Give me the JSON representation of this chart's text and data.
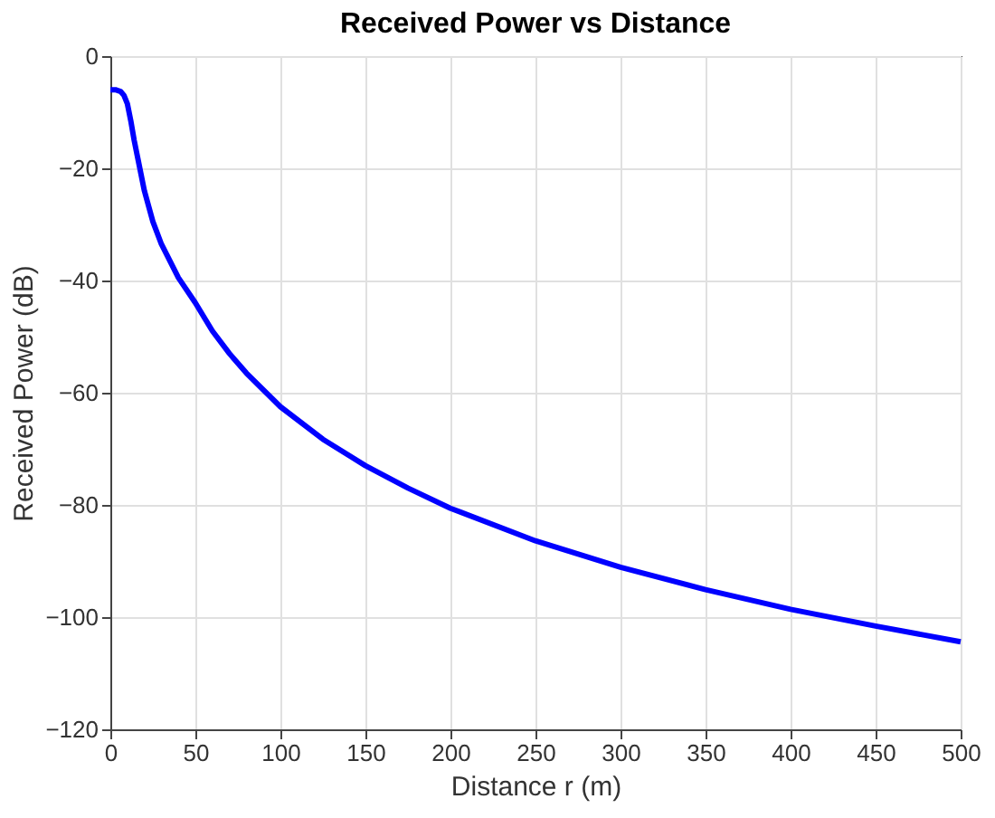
{
  "chart_data": {
    "type": "line",
    "title": "Received Power vs Distance",
    "xlabel": "Distance r (m)",
    "ylabel": "Received Power (dB)",
    "x": [
      0,
      3,
      6,
      8,
      10,
      12,
      14,
      16,
      20,
      25,
      30,
      40,
      50,
      60,
      70,
      80,
      100,
      125,
      150,
      175,
      200,
      250,
      300,
      350,
      400,
      450,
      500
    ],
    "series": [
      {
        "color": "#0000ff",
        "values": [
          -6,
          -6,
          -6.3,
          -7,
          -8.5,
          -11.5,
          -15,
          -18,
          -24,
          -29.5,
          -33.5,
          -39.5,
          -44,
          -49,
          -53,
          -56.5,
          -62.5,
          -68.3,
          -73,
          -77,
          -80.6,
          -86.4,
          -91.1,
          -95.1,
          -98.6,
          -101.6,
          -104.4
        ]
      }
    ],
    "xlim": [
      0,
      500
    ],
    "xticks": [
      0,
      50,
      100,
      150,
      200,
      250,
      300,
      350,
      400,
      450,
      500
    ],
    "ylim": [
      -120,
      0
    ],
    "yticks": [
      -120,
      -100,
      -80,
      -60,
      -40,
      -20,
      0
    ],
    "grid": true,
    "marker": "none",
    "line_style": "solid"
  }
}
